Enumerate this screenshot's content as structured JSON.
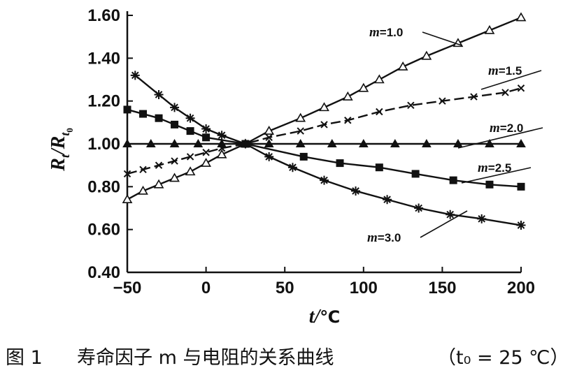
{
  "chart_data": {
    "type": "line",
    "title": "",
    "xlabel": "t/℃",
    "ylabel": "R_t/R_t0",
    "xlim": [
      -50,
      200
    ],
    "ylim": [
      0.4,
      1.6
    ],
    "xticks": [
      "-50",
      "0",
      "50",
      "100",
      "150",
      "200"
    ],
    "yticks": [
      "0.40",
      "0.60",
      "0.80",
      "1.00",
      "1.20",
      "1.40",
      "1.60"
    ],
    "grid": false,
    "legend": "inline-labels",
    "series": [
      {
        "name": "m=1.0",
        "marker": "triangle-open",
        "x": [
          -50,
          -40,
          -30,
          -20,
          -10,
          0,
          10,
          25,
          40,
          60,
          75,
          90,
          100,
          110,
          125,
          140,
          160,
          180,
          200
        ],
        "y": [
          0.74,
          0.78,
          0.81,
          0.84,
          0.87,
          0.91,
          0.95,
          1.0,
          1.06,
          1.12,
          1.17,
          1.22,
          1.26,
          1.3,
          1.36,
          1.41,
          1.47,
          1.53,
          1.59
        ]
      },
      {
        "name": "m=1.5",
        "marker": "x",
        "x": [
          -50,
          -40,
          -30,
          -20,
          -10,
          0,
          10,
          25,
          40,
          60,
          75,
          90,
          110,
          130,
          150,
          170,
          190,
          200
        ],
        "y": [
          0.86,
          0.88,
          0.9,
          0.92,
          0.94,
          0.96,
          0.98,
          1.0,
          1.03,
          1.06,
          1.09,
          1.11,
          1.15,
          1.18,
          1.2,
          1.22,
          1.24,
          1.26
        ]
      },
      {
        "name": "m=2.0",
        "marker": "triangle-filled",
        "x": [
          -50,
          -35,
          -20,
          -5,
          10,
          25,
          40,
          60,
          80,
          100,
          120,
          140,
          160,
          180,
          200
        ],
        "y": [
          1.0,
          1.0,
          1.0,
          1.0,
          1.0,
          1.0,
          1.0,
          1.0,
          1.0,
          1.0,
          1.0,
          1.0,
          1.0,
          1.0,
          1.0
        ]
      },
      {
        "name": "m=2.5",
        "marker": "square-filled",
        "x": [
          -50,
          -40,
          -30,
          -20,
          -10,
          0,
          25,
          62,
          85,
          110,
          133,
          157,
          180,
          200
        ],
        "y": [
          1.16,
          1.14,
          1.12,
          1.09,
          1.06,
          1.03,
          1.0,
          0.94,
          0.91,
          0.89,
          0.86,
          0.83,
          0.81,
          0.8
        ]
      },
      {
        "name": "m=3.0",
        "marker": "asterisk",
        "x": [
          -45,
          -30,
          -20,
          -10,
          0,
          10,
          25,
          40,
          55,
          75,
          95,
          115,
          135,
          155,
          175,
          200
        ],
        "y": [
          1.32,
          1.23,
          1.17,
          1.12,
          1.07,
          1.04,
          1.0,
          0.94,
          0.89,
          0.83,
          0.78,
          0.74,
          0.7,
          0.67,
          0.65,
          0.62
        ]
      }
    ]
  },
  "caption": {
    "fig_label": "图 1",
    "title": "寿命因子 m 与电阻的关系曲线",
    "condition": "（t₀ = 25 ℃）"
  }
}
